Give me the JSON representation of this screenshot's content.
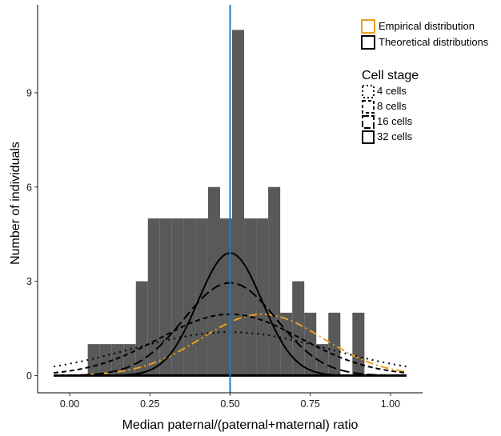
{
  "chart_data": {
    "type": "bar",
    "xlabel": "Median paternal/(paternal+maternal) ratio",
    "ylabel": "Number of individuals",
    "xlim": [
      -0.1,
      1.1
    ],
    "ylim": [
      -0.55,
      11.8
    ],
    "x_ticks": [
      0.0,
      0.25,
      0.5,
      0.75,
      1.0
    ],
    "x_tick_labels": [
      "0.00",
      "0.25",
      "0.50",
      "0.75",
      "1.00"
    ],
    "y_ticks": [
      0,
      3,
      6,
      9
    ],
    "y_tick_labels": [
      "0",
      "3",
      "6",
      "9"
    ],
    "grid": false,
    "bin_width": 0.0375,
    "histogram": {
      "bin_centers": [
        -0.0375,
        0.0,
        0.0375,
        0.075,
        0.1125,
        0.15,
        0.1875,
        0.225,
        0.2625,
        0.3,
        0.3375,
        0.375,
        0.4125,
        0.45,
        0.4875,
        0.525,
        0.5625,
        0.6,
        0.6375,
        0.675,
        0.7125,
        0.75,
        0.7875,
        0.825,
        0.8625,
        0.9,
        0.9375,
        0.975,
        1.0125,
        1.05
      ],
      "counts": [
        0,
        0,
        0,
        1,
        1,
        1,
        1,
        3,
        5,
        5,
        5,
        5,
        5,
        6,
        5,
        11,
        5,
        5,
        6,
        2,
        3,
        2,
        1,
        2,
        0,
        2,
        0,
        0,
        0,
        0
      ]
    },
    "reference_line": {
      "x": 0.5,
      "color": "#1f78c1"
    },
    "curves": {
      "x_range": [
        -0.05,
        1.05
      ],
      "series": [
        {
          "name": "Empirical distribution",
          "kind": "empirical",
          "mean": 0.6,
          "sd": 0.19,
          "peak": 1.95,
          "color": "#e8a020",
          "dash": "10,4,2,4"
        },
        {
          "name": "4 cells",
          "kind": "theoretical",
          "mean": 0.5,
          "sd": 0.31,
          "peak": 1.38,
          "color": "#000000",
          "dash": "2,5"
        },
        {
          "name": "8 cells",
          "kind": "theoretical",
          "mean": 0.5,
          "sd": 0.22,
          "peak": 1.95,
          "color": "#000000",
          "dash": "6,4"
        },
        {
          "name": "16 cells",
          "kind": "theoretical",
          "mean": 0.5,
          "sd": 0.145,
          "peak": 2.95,
          "color": "#000000",
          "dash": "12,5"
        },
        {
          "name": "32 cells",
          "kind": "theoretical",
          "mean": 0.5,
          "sd": 0.1,
          "peak": 3.9,
          "color": "#000000",
          "dash": ""
        }
      ]
    },
    "legend": {
      "position": "top-right",
      "distribution_entries": [
        {
          "label": "Empirical distribution",
          "color": "#e8a020"
        },
        {
          "label": "Theoretical distributions",
          "color": "#000000"
        }
      ],
      "cell_stage_title": "Cell stage",
      "cell_stage_entries": [
        {
          "label": "4 cells",
          "dash": "2,3"
        },
        {
          "label": "8 cells",
          "dash": "4,3"
        },
        {
          "label": "16 cells",
          "dash": "8,3"
        },
        {
          "label": "32 cells",
          "dash": ""
        }
      ]
    },
    "colors": {
      "bars": "#595959",
      "axis": "#000000"
    }
  }
}
